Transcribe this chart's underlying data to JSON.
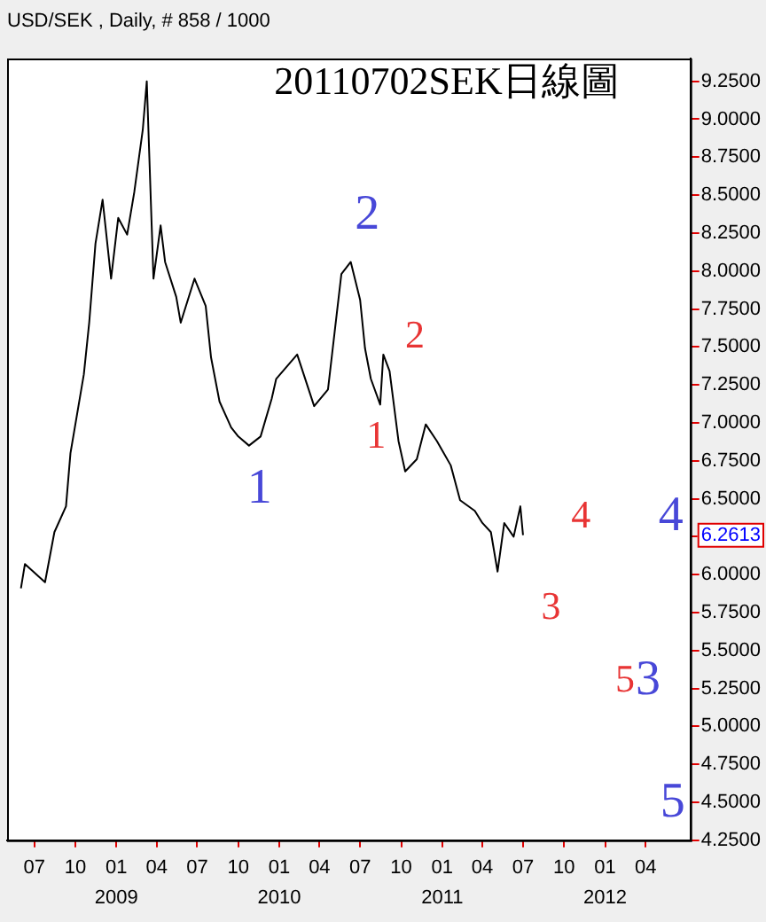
{
  "chart_data": {
    "type": "line",
    "title": "20110702SEK日線圖",
    "subtitle": "USD/SEK , Daily, # 858 / 1000",
    "x": [
      "2008-06-01",
      "2008-06-10",
      "2008-07-25",
      "2008-08-15",
      "2008-09-10",
      "2008-09-20",
      "2008-10-20",
      "2008-11-01",
      "2008-11-15",
      "2008-12-01",
      "2008-12-20",
      "2009-01-05",
      "2009-01-25",
      "2009-02-10",
      "2009-03-01",
      "2009-03-10",
      "2009-03-25",
      "2009-04-10",
      "2009-04-20",
      "2009-05-15",
      "2009-05-25",
      "2009-06-25",
      "2009-07-20",
      "2009-08-01",
      "2009-08-20",
      "2009-09-15",
      "2009-10-01",
      "2009-10-25",
      "2009-11-20",
      "2009-12-15",
      "2009-12-25",
      "2010-02-10",
      "2010-03-20",
      "2010-04-20",
      "2010-05-05",
      "2010-05-20",
      "2010-06-10",
      "2010-07-01",
      "2010-07-12",
      "2010-07-25",
      "2010-08-15",
      "2010-08-22",
      "2010-09-05",
      "2010-09-25",
      "2010-10-10",
      "2010-11-05",
      "2010-11-25",
      "2010-12-20",
      "2011-01-20",
      "2011-02-10",
      "2011-03-15",
      "2011-04-01",
      "2011-04-20",
      "2011-05-05",
      "2011-05-20",
      "2011-06-10",
      "2011-06-25",
      "2011-07-01"
    ],
    "series": [
      {
        "color": "#000000",
        "values": [
          5.91,
          6.07,
          5.95,
          6.28,
          6.45,
          6.8,
          7.32,
          7.66,
          8.18,
          8.47,
          7.95,
          8.35,
          8.24,
          8.52,
          8.93,
          9.25,
          7.95,
          8.3,
          8.06,
          7.83,
          7.66,
          7.95,
          7.77,
          7.43,
          7.14,
          6.97,
          6.91,
          6.85,
          6.91,
          7.16,
          7.29,
          7.45,
          7.11,
          7.22,
          7.6,
          7.98,
          8.06,
          7.81,
          7.49,
          7.29,
          7.12,
          7.45,
          7.34,
          6.88,
          6.68,
          6.76,
          6.99,
          6.88,
          6.72,
          6.49,
          6.42,
          6.34,
          6.28,
          6.02,
          6.34,
          6.25,
          6.45,
          6.26
        ]
      }
    ],
    "xlim": [
      "2008-05-01",
      "2012-07-10"
    ],
    "xticks": [
      {
        "value": "2008-07",
        "label": "07"
      },
      {
        "value": "2008-10",
        "label": "10"
      },
      {
        "value": "2009-01",
        "label": "01\n2009"
      },
      {
        "value": "2009-04",
        "label": "04"
      },
      {
        "value": "2009-07",
        "label": "07"
      },
      {
        "value": "2009-10",
        "label": "10"
      },
      {
        "value": "2010-01",
        "label": "01\n2010"
      },
      {
        "value": "2010-04",
        "label": "04"
      },
      {
        "value": "2010-07",
        "label": "07"
      },
      {
        "value": "2010-10",
        "label": "10"
      },
      {
        "value": "2011-01",
        "label": "01\n2011"
      },
      {
        "value": "2011-04",
        "label": "04"
      },
      {
        "value": "2011-07",
        "label": "07"
      },
      {
        "value": "2011-10",
        "label": "10"
      },
      {
        "value": "2012-01",
        "label": "01\n2012"
      },
      {
        "value": "2012-04",
        "label": "04"
      }
    ],
    "ylim": [
      4.25,
      9.4
    ],
    "yticks": [
      {
        "value": 4.25,
        "label": "4.2500"
      },
      {
        "value": 4.5,
        "label": "4.5000"
      },
      {
        "value": 4.75,
        "label": "4.7500"
      },
      {
        "value": 5,
        "label": "5.0000"
      },
      {
        "value": 5.25,
        "label": "5.2500"
      },
      {
        "value": 5.5,
        "label": "5.5000"
      },
      {
        "value": 5.75,
        "label": "5.7500"
      },
      {
        "value": 6,
        "label": "6.0000"
      },
      {
        "value": 6.25,
        "label": null
      },
      {
        "value": 6.5,
        "label": "6.5000"
      },
      {
        "value": 6.75,
        "label": "6.7500"
      },
      {
        "value": 7,
        "label": "7.0000"
      },
      {
        "value": 7.25,
        "label": "7.2500"
      },
      {
        "value": 7.5,
        "label": "7.5000"
      },
      {
        "value": 7.75,
        "label": "7.7500"
      },
      {
        "value": 8,
        "label": "8.0000"
      },
      {
        "value": 8.25,
        "label": "8.2500"
      },
      {
        "value": 8.5,
        "label": "8.5000"
      },
      {
        "value": 8.75,
        "label": "8.7500"
      },
      {
        "value": 9,
        "label": "9.0000"
      },
      {
        "value": 9.25,
        "label": "9.2500"
      }
    ],
    "annotations": [
      "1",
      "2",
      "1",
      "2",
      "3",
      "4",
      "4",
      "5",
      "3",
      "5",
      "6.2613"
    ],
    "grid": false,
    "legend": false,
    "marker": "none",
    "line_style": "solid"
  }
}
